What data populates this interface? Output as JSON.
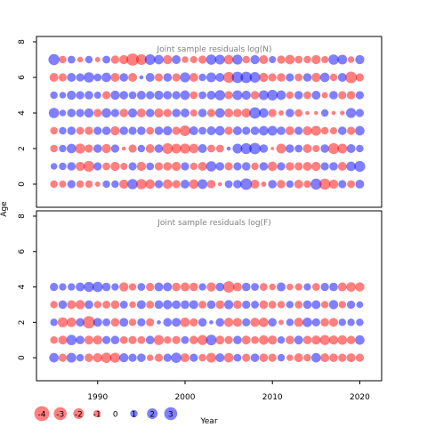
{
  "chart_data": [
    {
      "type": "scatter",
      "title": "Joint sample residuals log(N)",
      "xlabel": "Year",
      "ylabel": "Age",
      "xlim": [
        1983,
        2022.5
      ],
      "ylim": [
        -1.3,
        8.3
      ],
      "xticks": [
        1990,
        2000,
        2010,
        2020
      ],
      "yticks": [
        0,
        2,
        4,
        6,
        8
      ],
      "years": [
        1985,
        1986,
        1987,
        1988,
        1989,
        1990,
        1991,
        1992,
        1993,
        1994,
        1995,
        1996,
        1997,
        1998,
        1999,
        2000,
        2001,
        2002,
        2003,
        2004,
        2005,
        2006,
        2007,
        2008,
        2009,
        2010,
        2011,
        2012,
        2013,
        2014,
        2015,
        2016,
        2017,
        2018,
        2019,
        2020
      ],
      "ages": [
        0,
        1,
        2,
        3,
        4,
        5,
        6,
        7
      ],
      "rows": [
        {
          "age": 7,
          "residuals": [
            2.2,
            -1.0,
            1.1,
            -0.6,
            1.0,
            -0.5,
            1.1,
            -1.2,
            -1.5,
            -2.7,
            -2.0,
            2.0,
            1.6,
            -1.5,
            1.4,
            -0.8,
            -0.9,
            -1.2,
            1.9,
            1.7,
            -1.6,
            1.8,
            -1.0,
            1.5,
            -1.4,
            0.9,
            -1.2,
            -1.6,
            -1.1,
            -1.0,
            -1.5,
            -0.9,
            1.9,
            1.7,
            -0.8,
            1.5
          ]
        },
        {
          "age": 6,
          "residuals": [
            -1.4,
            -1.2,
            1.4,
            1.2,
            1.9,
            1.1,
            1.6,
            -1.4,
            1.3,
            -1.4,
            0.3,
            1.4,
            -1.2,
            1.3,
            -1.2,
            1.8,
            -1.4,
            1.0,
            1.7,
            1.4,
            -2.1,
            2.3,
            2.3,
            2.0,
            -1.5,
            -1.2,
            -1.3,
            1.2,
            -1.1,
            1.3,
            -1.5,
            1.6,
            -1.0,
            1.4,
            -2.4,
            -1.2
          ]
        },
        {
          "age": 5,
          "residuals": [
            1.0,
            0.8,
            1.5,
            1.2,
            1.3,
            0.9,
            -1.2,
            1.5,
            1.3,
            1.1,
            1.4,
            1.2,
            1.5,
            1.3,
            1.2,
            1.6,
            -1.1,
            1.1,
            1.4,
            1.9,
            -1.2,
            1.7,
            1.5,
            -1.3,
            1.7,
            2.0,
            1.6,
            -1.0,
            1.3,
            -1.1,
            1.4,
            -0.7,
            1.3,
            -1.2,
            -1.3,
            1.2
          ]
        },
        {
          "age": 4,
          "residuals": [
            1.9,
            0.8,
            1.3,
            1.2,
            1.5,
            -1.2,
            1.6,
            1.2,
            -1.3,
            1.5,
            -1.4,
            1.3,
            -1.5,
            -1.2,
            1.3,
            1.4,
            -0.9,
            1.3,
            -1.2,
            1.6,
            -1.4,
            -1.3,
            -1.5,
            2.3,
            1.6,
            -1.2,
            -0.5,
            1.3,
            -1.1,
            -0.3,
            -0.3,
            1.0,
            -0.3,
            -0.4,
            1.8,
            1.2
          ]
        },
        {
          "age": 3,
          "residuals": [
            -1.0,
            1.0,
            1.3,
            -1.1,
            -1.2,
            1.2,
            1.3,
            -1.5,
            1.3,
            1.2,
            1.3,
            -1.1,
            1.3,
            1.5,
            -1.2,
            -2.0,
            1.4,
            1.1,
            1.4,
            1.6,
            -1.2,
            1.4,
            1.2,
            1.3,
            1.6,
            1.7,
            1.3,
            -1.4,
            1.2,
            -1.5,
            -1.8,
            -1.0,
            -0.9,
            1.3,
            -1.2,
            1.6
          ]
        },
        {
          "age": 2,
          "residuals": [
            -1.0,
            1.0,
            1.6,
            -1.8,
            -1.2,
            1.3,
            -1.5,
            1.2,
            -0.3,
            -1.2,
            1.0,
            -1.4,
            1.3,
            -2.0,
            -1.7,
            -1.8,
            -1.6,
            1.4,
            -1.1,
            -1.1,
            0.3,
            1.7,
            2.1,
            2.3,
            1.3,
            -0.2,
            -1.7,
            1.3,
            1.1,
            -1.4,
            -0.9,
            1.3,
            -2.1,
            -1.7,
            1.4,
            1.0
          ]
        },
        {
          "age": 1,
          "residuals": [
            0.8,
            1.0,
            1.3,
            -1.5,
            -2.1,
            1.2,
            -1.1,
            -1.5,
            -0.9,
            1.2,
            -1.5,
            1.1,
            -1.2,
            -1.3,
            -1.5,
            1.2,
            -1.0,
            -1.4,
            1.9,
            1.3,
            -1.2,
            1.2,
            1.3,
            -1.0,
            1.3,
            -1.6,
            1.2,
            -1.3,
            -1.2,
            -1.4,
            -1.5,
            1.2,
            1.3,
            -1.4,
            1.6,
            2.1
          ]
        },
        {
          "age": 0,
          "residuals": [
            -1.0,
            -0.9,
            1.2,
            -1.0,
            -1.0,
            -0.5,
            1.0,
            1.0,
            -1.5,
            1.9,
            -1.9,
            -1.6,
            1.2,
            -1.6,
            -1.2,
            1.4,
            -1.6,
            1.7,
            -1.3,
            -0.3,
            1.1,
            1.3,
            2.4,
            -1.4,
            -0.5,
            1.3,
            -1.3,
            1.0,
            -1.4,
            -1.0,
            2.2,
            -2.2,
            -1.5,
            1.2,
            -1.1,
            1.4
          ]
        }
      ]
    },
    {
      "type": "scatter",
      "title": "Joint sample residuals log(F)",
      "xlabel": "Year",
      "ylabel": "Age",
      "xlim": [
        1983,
        2022.5
      ],
      "ylim": [
        -1.3,
        8.3
      ],
      "xticks": [
        1990,
        2000,
        2010,
        2020
      ],
      "yticks": [
        0,
        2,
        4,
        6,
        8
      ],
      "years": [
        1985,
        1986,
        1987,
        1988,
        1989,
        1990,
        1991,
        1992,
        1993,
        1994,
        1995,
        1996,
        1997,
        1998,
        1999,
        2000,
        2001,
        2002,
        2003,
        2004,
        2005,
        2006,
        2007,
        2008,
        2009,
        2010,
        2011,
        2012,
        2013,
        2014,
        2015,
        2016,
        2017,
        2018,
        2019,
        2020
      ],
      "ages": [
        0,
        1,
        2,
        3,
        4
      ],
      "rows": [
        {
          "age": 4,
          "residuals": [
            1.2,
            1.0,
            1.0,
            1.4,
            1.8,
            1.9,
            1.3,
            1.0,
            -1.5,
            -1.0,
            1.1,
            -1.2,
            1.4,
            1.4,
            -1.3,
            -1.4,
            -1.3,
            1.0,
            -1.5,
            1.3,
            -2.3,
            -1.4,
            1.3,
            1.1,
            -1.1,
            -0.8,
            1.4,
            -0.8,
            -1.0,
            1.0,
            -1.1,
            1.2,
            1.3,
            -1.4,
            -1.6,
            -1.5
          ]
        },
        {
          "age": 3,
          "residuals": [
            -1.0,
            1.3,
            -1.4,
            -1.5,
            1.3,
            -1.0,
            -1.1,
            -1.3,
            1.1,
            -0.8,
            1.4,
            -1.1,
            1.3,
            1.5,
            1.3,
            1.3,
            1.4,
            -1.1,
            1.3,
            -1.3,
            1.5,
            -1.3,
            1.2,
            1.1,
            -1.3,
            -1.1,
            -1.0,
            1.0,
            -1.1,
            1.3,
            1.4,
            -1.0,
            1.5,
            -1.0,
            1.2,
            0.8
          ]
        },
        {
          "age": 2,
          "residuals": [
            1.0,
            -1.8,
            -1.6,
            1.3,
            -2.7,
            1.4,
            1.1,
            -1.3,
            1.4,
            -1.0,
            1.2,
            -1.2,
            0.3,
            1.3,
            1.4,
            -1.6,
            -1.2,
            1.3,
            0.3,
            1.3,
            -1.5,
            -1.4,
            1.2,
            -1.5,
            -1.6,
            1.3,
            -0.5,
            1.0,
            -1.5,
            1.6,
            1.2,
            -1.3,
            -1.4,
            1.0,
            1.0,
            1.0
          ]
        },
        {
          "age": 1,
          "residuals": [
            -1.0,
            -1.4,
            1.9,
            1.3,
            -1.4,
            -1.5,
            1.2,
            1.3,
            -1.1,
            -1.2,
            -1.1,
            1.3,
            -1.8,
            -1.0,
            -1.2,
            1.1,
            -1.3,
            -1.8,
            2.0,
            -1.4,
            -1.2,
            1.3,
            -1.4,
            -1.1,
            -1.6,
            -1.5,
            1.0,
            -1.3,
            1.4,
            -1.3,
            -1.5,
            -1.8,
            -1.5,
            -1.6,
            -1.3,
            1.6
          ]
        },
        {
          "age": 0,
          "residuals": [
            1.6,
            -1.2,
            1.7,
            1.0,
            -1.3,
            -1.5,
            -1.9,
            -1.8,
            1.5,
            1.2,
            1.3,
            -0.8,
            -1.2,
            1.2,
            1.9,
            -1.4,
            1.2,
            -1.0,
            -1.7,
            1.4,
            -1.6,
            1.1,
            -1.2,
            1.3,
            -1.3,
            -1.2,
            1.0,
            -0.8,
            -1.4,
            -1.0,
            1.6,
            -1.4,
            -1.3,
            -1.2,
            -1.4,
            -1.2
          ]
        }
      ]
    }
  ],
  "legend": {
    "values": [
      -4,
      -3,
      -2,
      -1,
      0,
      1,
      2,
      3
    ],
    "labels": [
      "-4",
      "-3",
      "-2",
      "-1",
      "0",
      "1",
      "2",
      "3"
    ]
  },
  "colors": {
    "negative": "#ff0000",
    "positive": "#0000ff",
    "fill_opacity": 0.5,
    "title_color": "#808080"
  }
}
